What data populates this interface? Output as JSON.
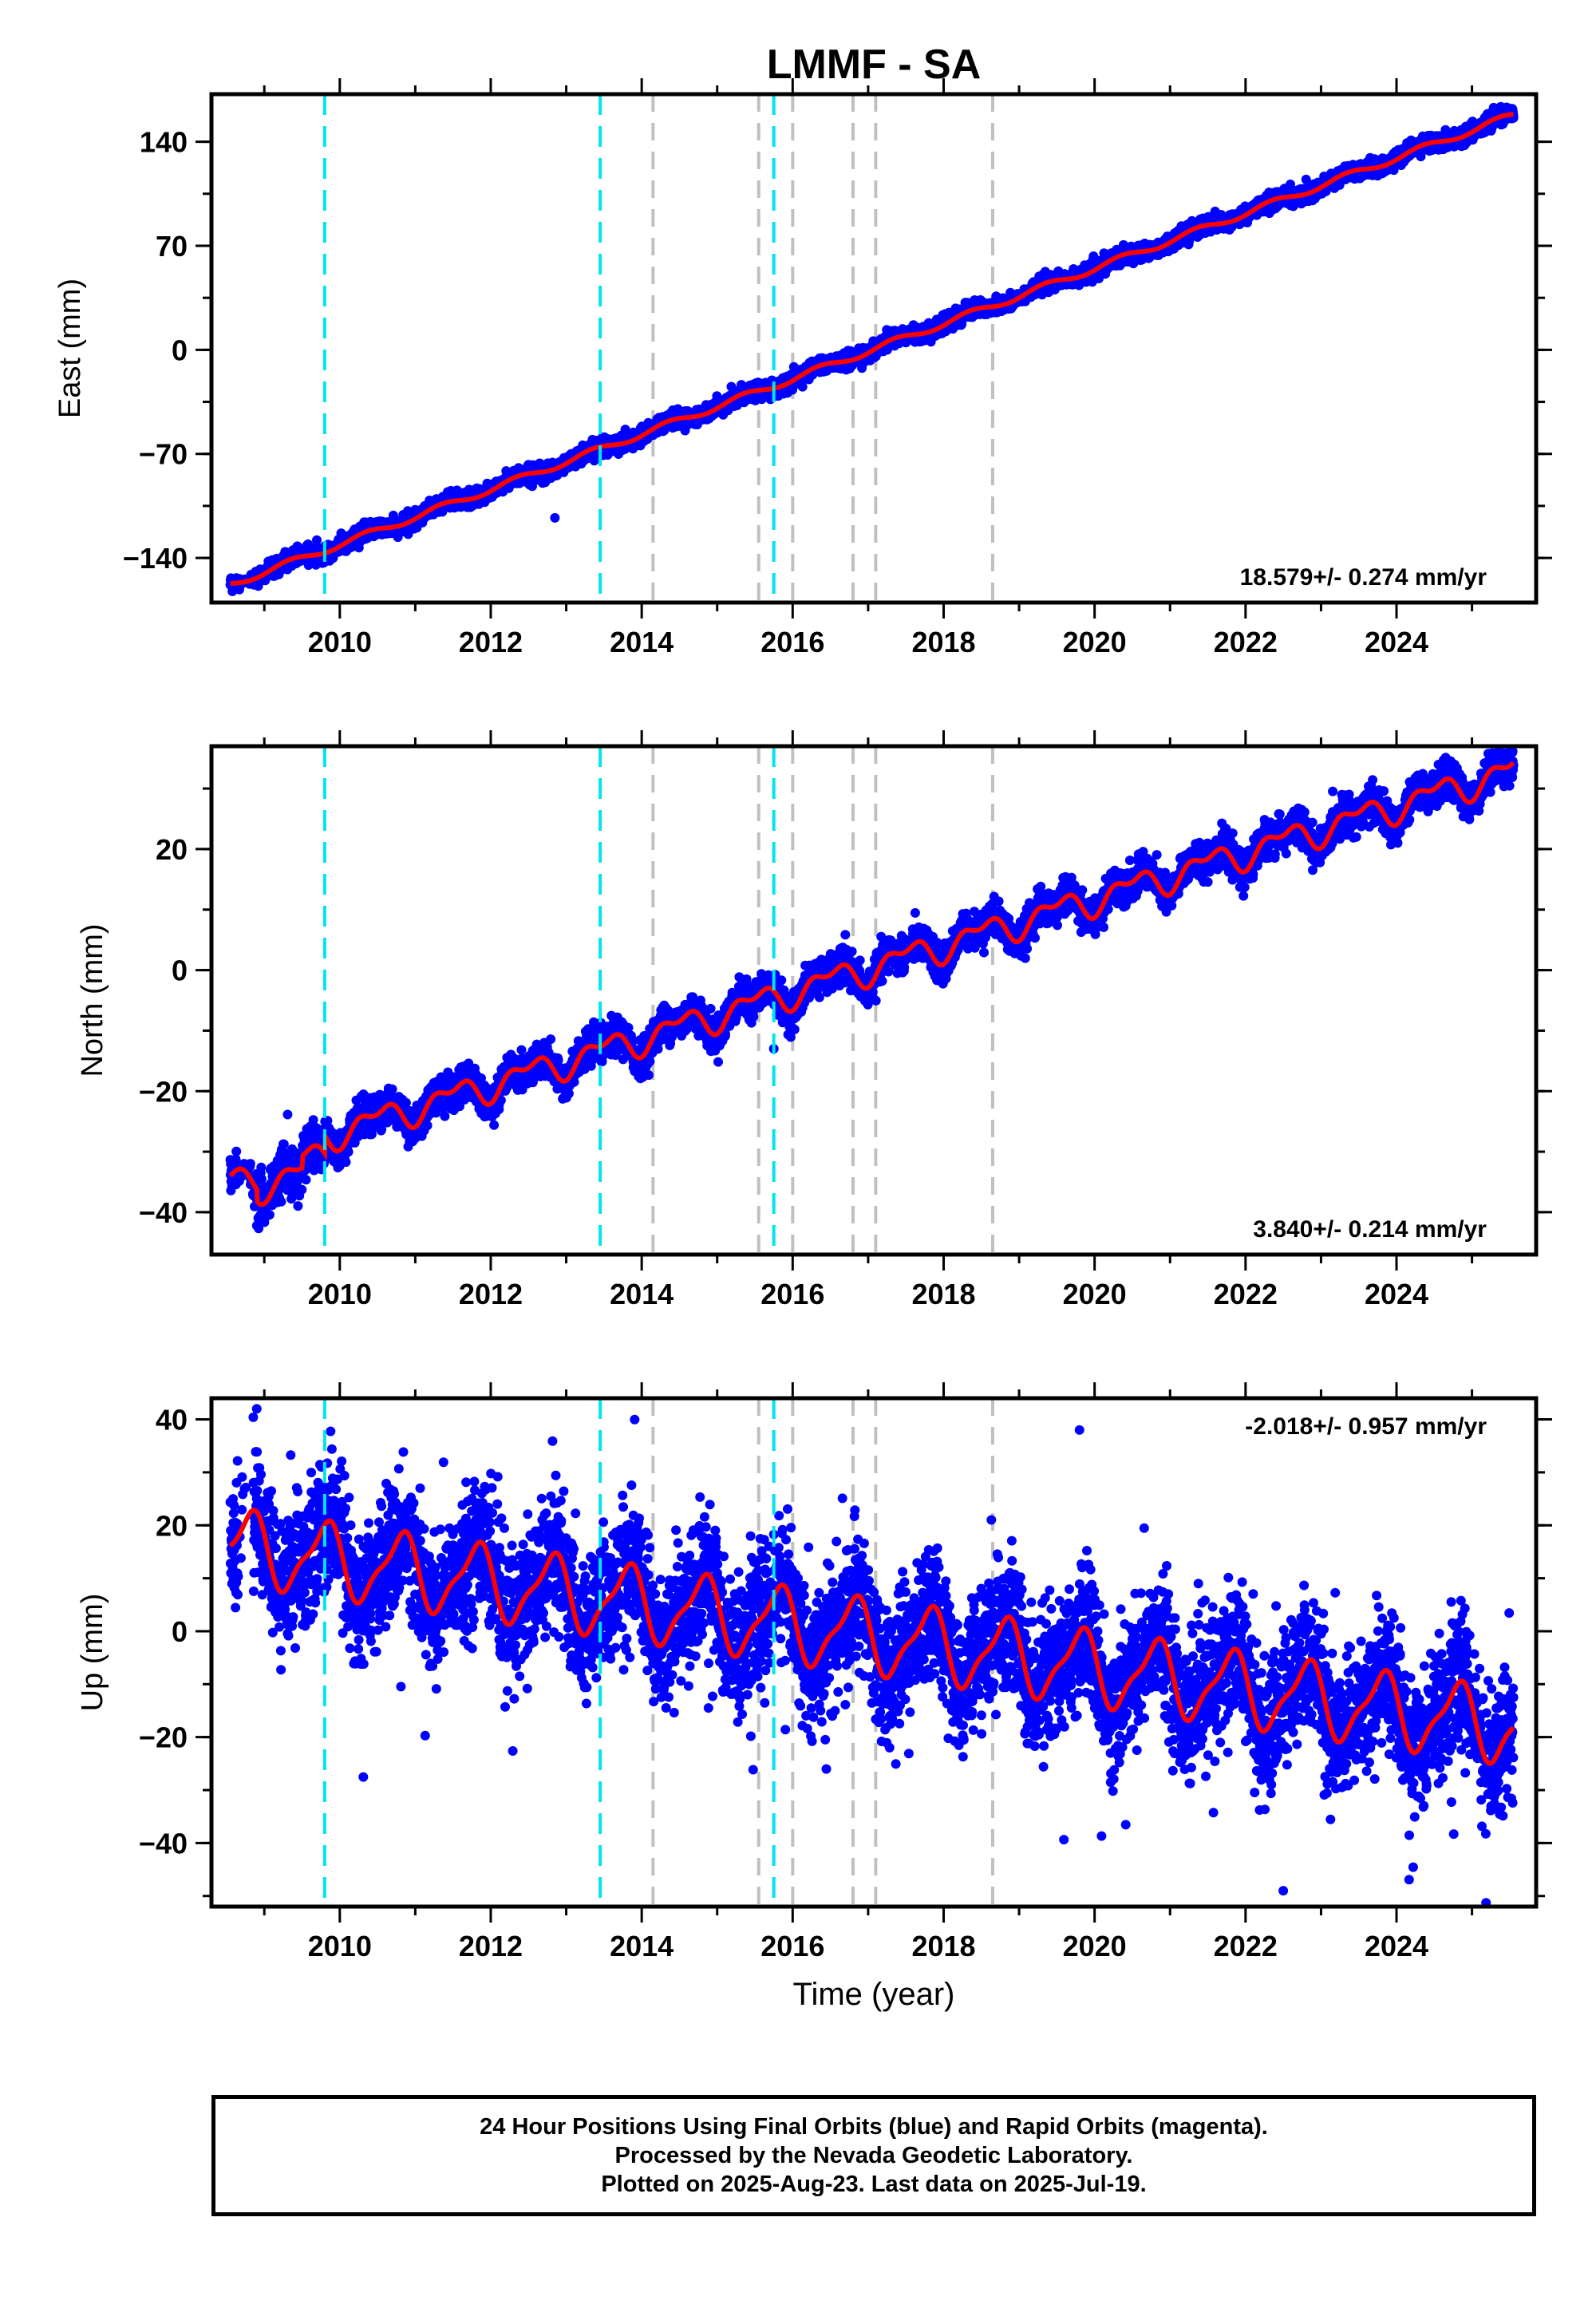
{
  "title": "LMMF - SA",
  "xlabel": "Time (year)",
  "colors": {
    "data": "#0000ff",
    "model": "#ff0000",
    "cyan_lines": "#00e5ee",
    "gray_lines": "#c0c0c0"
  },
  "footer": {
    "line1": "24 Hour Positions Using Final Orbits (blue) and Rapid Orbits (magenta).",
    "line2": "Processed by the Nevada Geodetic Laboratory.",
    "line3": "Plotted on 2025-Aug-23. Last data on 2025-Jul-19."
  },
  "chart_data": [
    {
      "type": "scatter",
      "panel": "east",
      "ylabel": "East (mm)",
      "rate_label": "18.579+/- 0.274 mm/yr",
      "rate_position": "bottom-right",
      "xlim": [
        2008.3,
        2025.85
      ],
      "ylim": [
        -170,
        172
      ],
      "yticks": [
        -140,
        -70,
        0,
        70,
        140
      ],
      "xticks": [
        2010,
        2012,
        2014,
        2016,
        2018,
        2020,
        2022,
        2024
      ],
      "slope": 18.579,
      "intercept_at_2008_6": -157,
      "seasonal_amp": 2.2,
      "noise": 2.6,
      "outliers": [
        {
          "x": 2012.85,
          "y": -113
        }
      ],
      "series": [
        {
          "name": "Final Orbits (blue)",
          "style": "points"
        },
        {
          "name": "model",
          "style": "line"
        }
      ]
    },
    {
      "type": "scatter",
      "panel": "north",
      "ylabel": "North (mm)",
      "rate_label": "3.840+/- 0.214 mm/yr",
      "rate_position": "bottom-right",
      "xlim": [
        2008.3,
        2025.85
      ],
      "ylim": [
        -47,
        37
      ],
      "yticks": [
        -40,
        -20,
        0,
        20
      ],
      "xticks": [
        2010,
        2012,
        2014,
        2016,
        2018,
        2020,
        2022,
        2024
      ],
      "slope": 3.84,
      "seasonal_amp": 2.0,
      "noise": 1.4,
      "offsets": [
        {
          "x": 2009.8,
          "dy": 7
        }
      ],
      "outliers": [
        {
          "x": 2015.75,
          "y": -13
        }
      ],
      "series": [
        {
          "name": "Final Orbits (blue)",
          "style": "points"
        },
        {
          "name": "model",
          "style": "line"
        }
      ]
    },
    {
      "type": "scatter",
      "panel": "up",
      "ylabel": "Up (mm)",
      "rate_label": "-2.018+/- 0.957 mm/yr",
      "rate_position": "top-right",
      "xlim": [
        2008.3,
        2025.85
      ],
      "ylim": [
        -52,
        44
      ],
      "yticks": [
        -40,
        -20,
        0,
        20,
        40
      ],
      "xticks": [
        2010,
        2012,
        2014,
        2016,
        2018,
        2020,
        2022,
        2024
      ],
      "slope": -2.018,
      "seasonal_amp": 6.5,
      "noise": 6.0,
      "outliers": [
        {
          "x": 2019.8,
          "y": 38
        },
        {
          "x": 2008.9,
          "y": 42
        },
        {
          "x": 2022.5,
          "y": -49
        }
      ],
      "series": [
        {
          "name": "Final Orbits (blue)",
          "style": "points"
        },
        {
          "name": "model",
          "style": "line"
        }
      ]
    }
  ],
  "event_lines": {
    "cyan": [
      2009.8,
      2013.45,
      2015.75
    ],
    "gray": [
      2014.15,
      2015.55,
      2016.0,
      2016.8,
      2017.1,
      2018.65
    ]
  }
}
